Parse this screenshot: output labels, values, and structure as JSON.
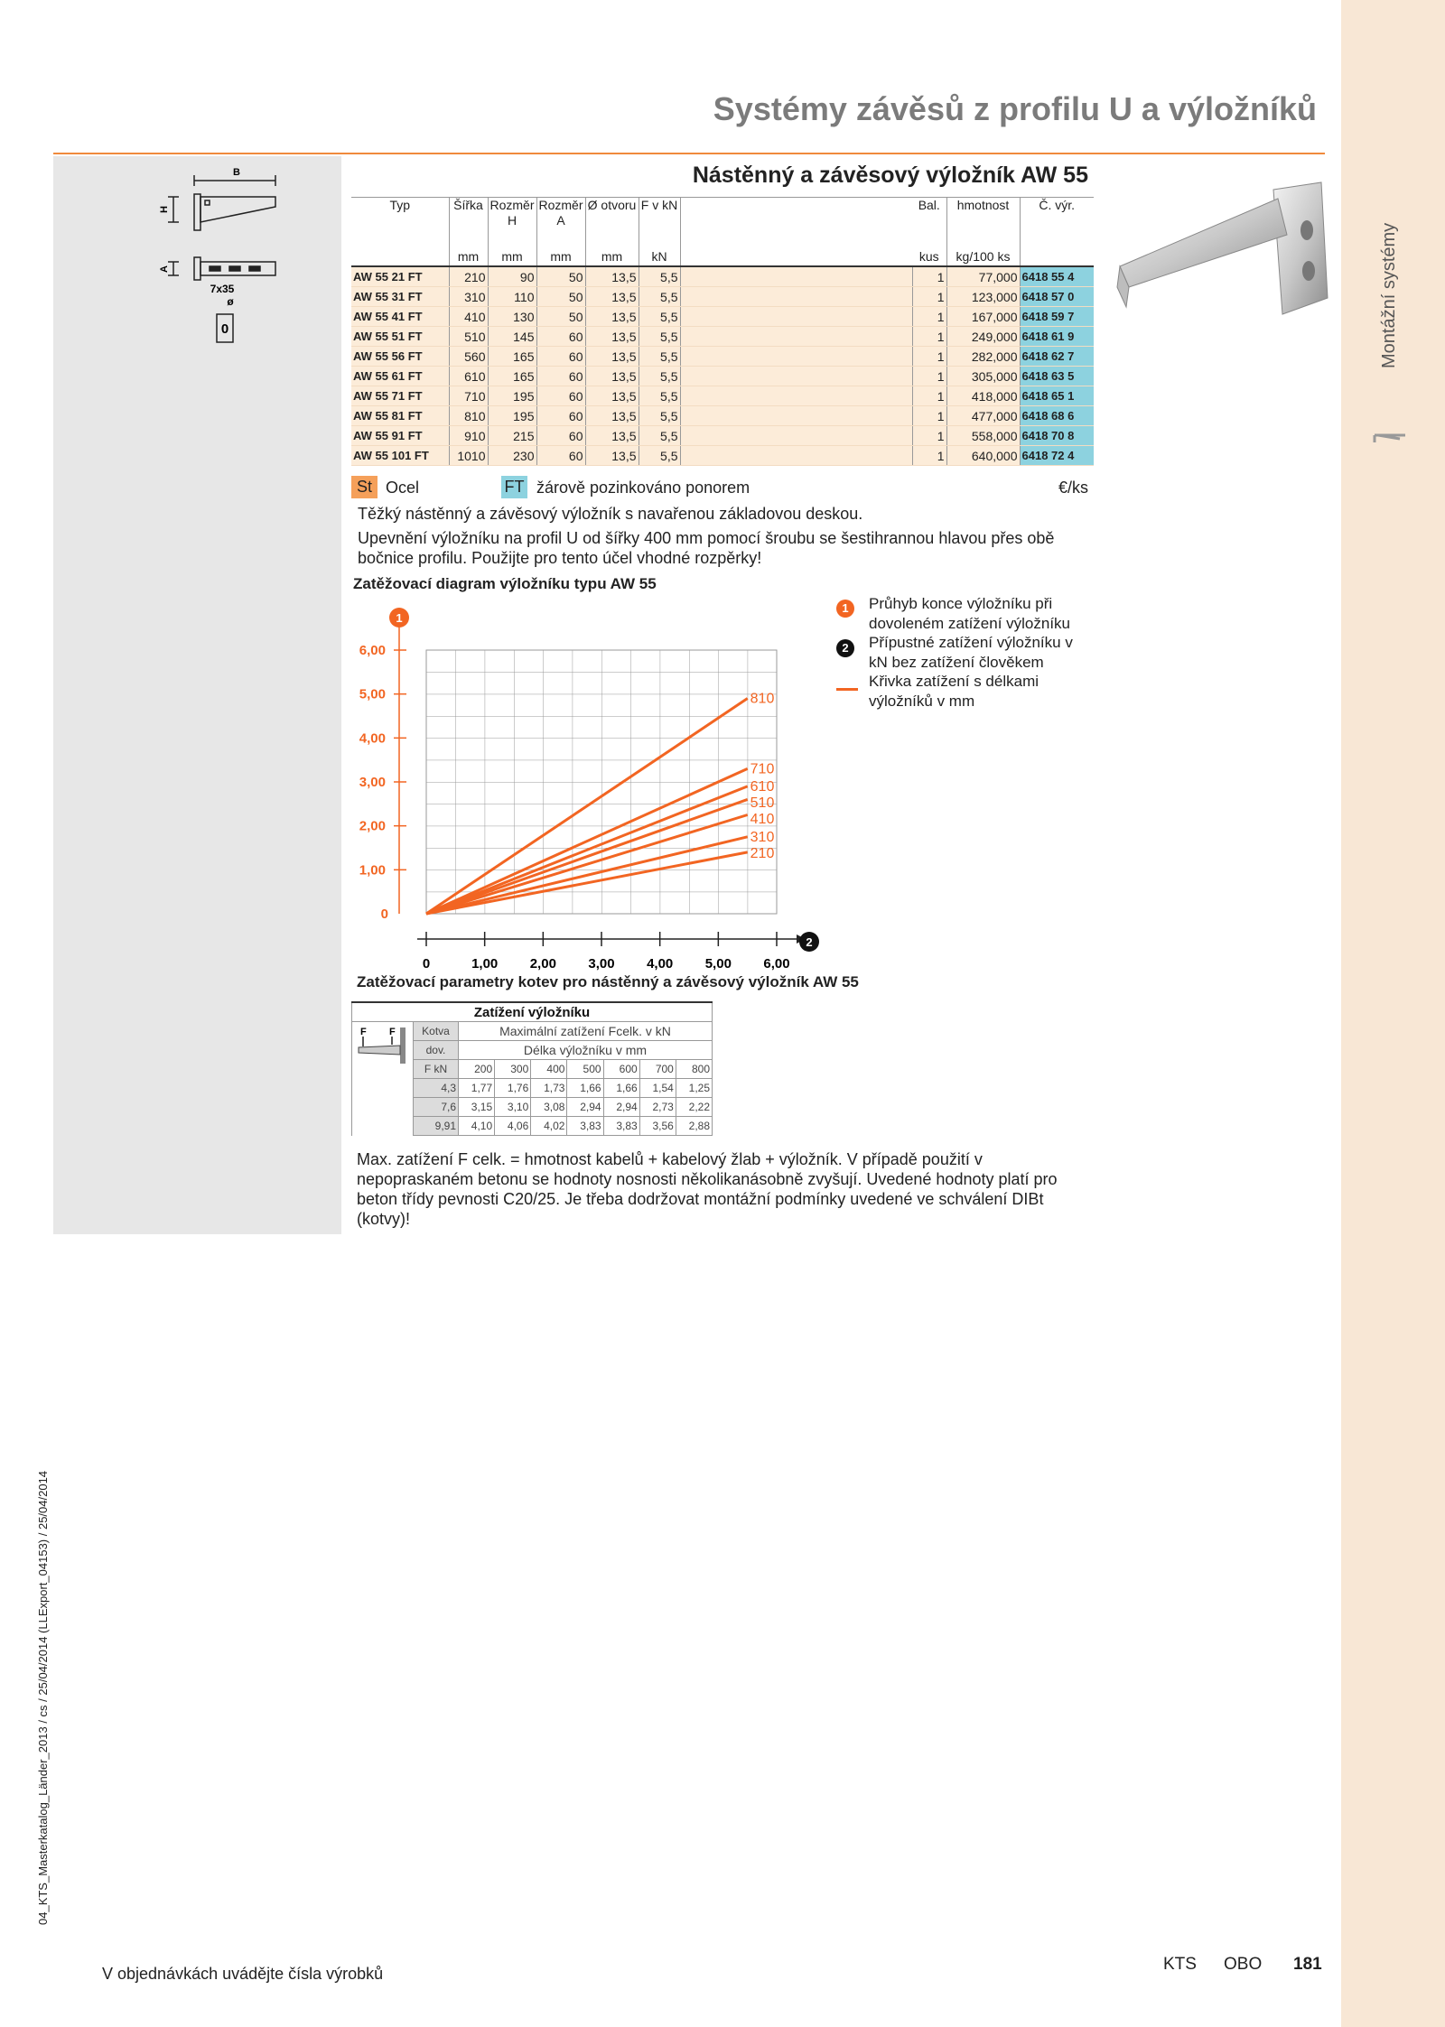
{
  "header": {
    "title": "Systémy závěsů z profilu U a výložníků",
    "side_label": "Montážní systémy"
  },
  "drawing": {
    "labels": [
      "B",
      "H",
      "A",
      "7x35",
      "ø",
      "0"
    ]
  },
  "product": {
    "title": "Nástěnný a závěsový výložník AW 55",
    "table": {
      "columns": [
        {
          "name": "Typ"
        },
        {
          "name": "Šířka",
          "unit": "mm"
        },
        {
          "name": "Rozměr",
          "sub": "H",
          "unit": "mm"
        },
        {
          "name": "Rozměr",
          "sub": "A",
          "unit": "mm"
        },
        {
          "name": "Ø otvoru",
          "unit": "mm"
        },
        {
          "name": "F v kN",
          "unit": "kN"
        },
        {
          "name": "Bal.",
          "unit": "kus"
        },
        {
          "name": "hmotnost",
          "unit": "kg/100 ks"
        },
        {
          "name": "Č. výr."
        }
      ],
      "rows": [
        [
          "AW 55 21 FT",
          "210",
          "90",
          "50",
          "13,5",
          "5,5",
          "1",
          "77,000",
          "6418 55 4"
        ],
        [
          "AW 55 31 FT",
          "310",
          "110",
          "50",
          "13,5",
          "5,5",
          "1",
          "123,000",
          "6418 57 0"
        ],
        [
          "AW 55 41 FT",
          "410",
          "130",
          "50",
          "13,5",
          "5,5",
          "1",
          "167,000",
          "6418 59 7"
        ],
        [
          "AW 55 51 FT",
          "510",
          "145",
          "60",
          "13,5",
          "5,5",
          "1",
          "249,000",
          "6418 61 9"
        ],
        [
          "AW 55 56 FT",
          "560",
          "165",
          "60",
          "13,5",
          "5,5",
          "1",
          "282,000",
          "6418 62 7"
        ],
        [
          "AW 55 61 FT",
          "610",
          "165",
          "60",
          "13,5",
          "5,5",
          "1",
          "305,000",
          "6418 63 5"
        ],
        [
          "AW 55 71 FT",
          "710",
          "195",
          "60",
          "13,5",
          "5,5",
          "1",
          "418,000",
          "6418 65 1"
        ],
        [
          "AW 55 81 FT",
          "810",
          "195",
          "60",
          "13,5",
          "5,5",
          "1",
          "477,000",
          "6418 68 6"
        ],
        [
          "AW 55 91 FT",
          "910",
          "215",
          "60",
          "13,5",
          "5,5",
          "1",
          "558,000",
          "6418 70 8"
        ],
        [
          "AW 55 101 FT",
          "1010",
          "230",
          "60",
          "13,5",
          "5,5",
          "1",
          "640,000",
          "6418 72 4"
        ]
      ]
    },
    "materials": [
      {
        "code": "St",
        "label": "Ocel"
      },
      {
        "code": "FT",
        "label": "žárově pozinkováno ponorem"
      }
    ],
    "price_unit": "€/ks",
    "description": [
      "Těžký nástěnný a závěsový výložník s navařenou základovou deskou.",
      "Upevnění výložníku na profil U od šířky 400 mm pomocí šroubu se šestihrannou hlavou přes obě bočnice profilu. Použijte pro tento účel vhodné rozpěrky!"
    ]
  },
  "chart_data": {
    "type": "line",
    "title": "Zatěžovací diagram výložníku typu AW 55",
    "x": [
      0,
      5.5
    ],
    "series": [
      {
        "name": "810",
        "color": "#f26522",
        "values": [
          0,
          4.9
        ]
      },
      {
        "name": "710",
        "color": "#f26522",
        "values": [
          0,
          3.3
        ]
      },
      {
        "name": "610",
        "color": "#f26522",
        "values": [
          0,
          2.9
        ]
      },
      {
        "name": "510",
        "color": "#f26522",
        "values": [
          0,
          2.6
        ]
      },
      {
        "name": "410",
        "color": "#f26522",
        "values": [
          0,
          2.25
        ]
      },
      {
        "name": "310",
        "color": "#f26522",
        "values": [
          0,
          1.75
        ]
      },
      {
        "name": "210",
        "color": "#f26522",
        "values": [
          0,
          1.4
        ]
      }
    ],
    "xlim": [
      0,
      6
    ],
    "ylim": [
      0,
      6
    ],
    "xticks": [
      0,
      {
        "value": 1,
        "label": "1,00"
      },
      {
        "value": 2,
        "label": "2,00"
      },
      {
        "value": 3,
        "label": "3,00"
      },
      {
        "value": 4,
        "label": "4,00"
      },
      {
        "value": 5,
        "label": "5,00"
      },
      {
        "value": 6,
        "label": "6,00"
      }
    ],
    "yticks": [
      0,
      {
        "value": 1,
        "label": "1,00"
      },
      {
        "value": 2,
        "label": "2,00"
      },
      {
        "value": 3,
        "label": "3,00"
      },
      {
        "value": 4,
        "label": "4,00"
      },
      {
        "value": 5,
        "label": "5,00"
      },
      {
        "value": 6,
        "label": "6,00"
      }
    ],
    "grid": true,
    "axis_markers": {
      "y": "1",
      "x": "2"
    },
    "legend": [
      {
        "marker": "1",
        "text": "Průhyb konce výložníku při dovoleném zatížení výložníku"
      },
      {
        "marker": "2",
        "text": "Přípustné zatížení výložníku v kN bez zatížení člověkem"
      },
      {
        "text": "Křivka zatížení s délkami výložníků v mm"
      }
    ]
  },
  "anchor_table": {
    "title": "Zatěžovací parametry kotev pro nástěnný a závěsový výložník AW 55",
    "caption": "Zatížení výložníku",
    "image_labels": [
      "F",
      "F"
    ],
    "label_kotva": "Kotva",
    "label_dov": "dov.",
    "label_unit": "F kN",
    "header_load": "Maximální zatížení Fcelk. v kN",
    "header_length": "Délka výložníku v mm",
    "lengths": [
      "200",
      "300",
      "400",
      "500",
      "600",
      "700",
      "800"
    ],
    "rows": [
      {
        "anchor": "4,3",
        "values": [
          "1,77",
          "1,76",
          "1,73",
          "1,66",
          "1,66",
          "1,54",
          "1,25"
        ]
      },
      {
        "anchor": "7,6",
        "values": [
          "3,15",
          "3,10",
          "3,08",
          "2,94",
          "2,94",
          "2,73",
          "2,22"
        ]
      },
      {
        "anchor": "9,91",
        "values": [
          "4,10",
          "4,06",
          "4,02",
          "3,83",
          "3,83",
          "3,56",
          "2,88"
        ]
      }
    ]
  },
  "note": "Max. zatížení F celk. = hmotnost kabelů + kabelový žlab + výložník. V případě použití v nepopraskaném betonu se hodnoty nosnosti několikanásobně zvyšují. Uvedené hodnoty platí pro beton třídy pevnosti C20/25. Je třeba dodržovat montážní podmínky uvedené ve schválení DIBt (kotvy)!",
  "footer": {
    "left": "V objednávkách uvádějte čísla výrobků",
    "brand1": "KTS",
    "brand2": "OBO",
    "page": "181",
    "print_info": "04_KTS_Masterkatalog_Länder_2013 / cs / 25/04/2014 (LLExport_04153) / 25/04/2014"
  }
}
